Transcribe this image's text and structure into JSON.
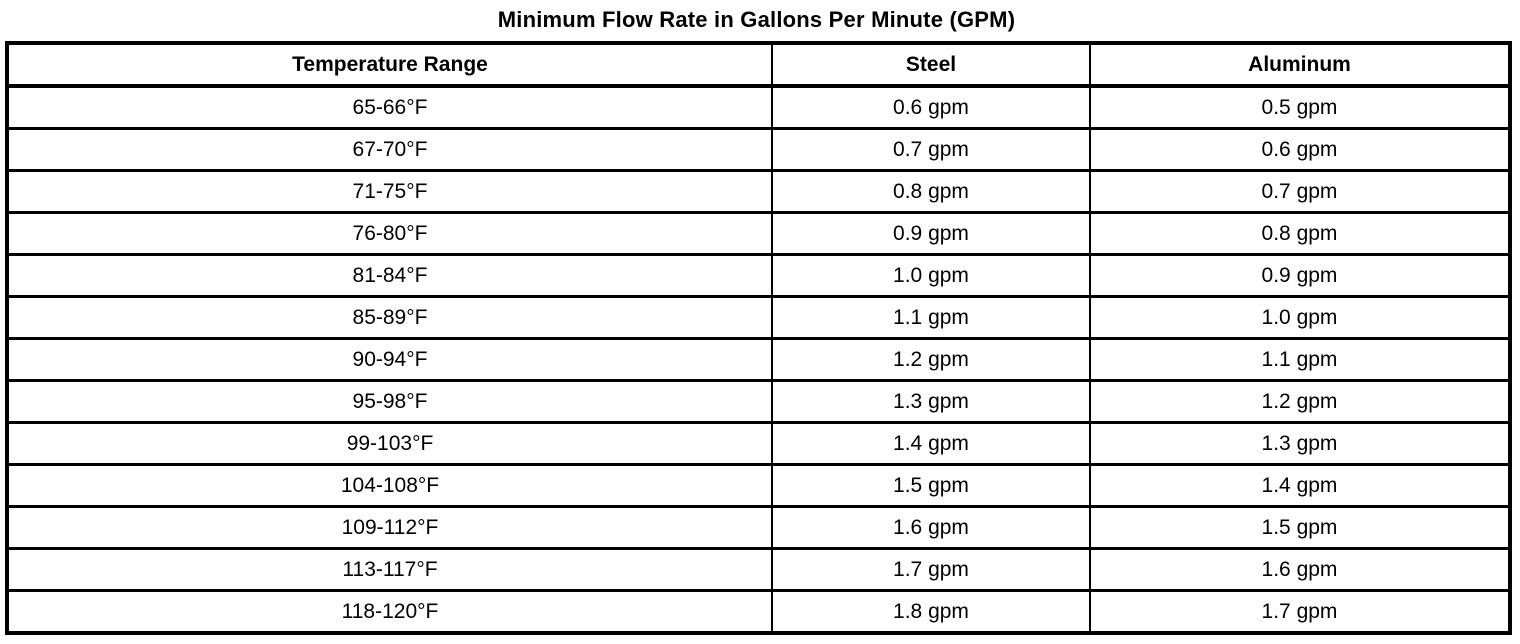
{
  "page": {
    "title": "Minimum Flow Rate in Gallons Per Minute (GPM)"
  },
  "colors": {
    "background": "#ffffff",
    "text": "#000000",
    "border": "#000000"
  },
  "table": {
    "columns": [
      "Temperature Range",
      "Steel",
      "Aluminum"
    ],
    "rows": [
      {
        "temperature": "65-66°F",
        "steel": "0.6 gpm",
        "aluminum": "0.5 gpm"
      },
      {
        "temperature": "67-70°F",
        "steel": "0.7 gpm",
        "aluminum": "0.6 gpm"
      },
      {
        "temperature": "71-75°F",
        "steel": "0.8 gpm",
        "aluminum": "0.7 gpm"
      },
      {
        "temperature": "76-80°F",
        "steel": "0.9 gpm",
        "aluminum": "0.8 gpm"
      },
      {
        "temperature": "81-84°F",
        "steel": "1.0 gpm",
        "aluminum": "0.9 gpm"
      },
      {
        "temperature": "85-89°F",
        "steel": "1.1 gpm",
        "aluminum": "1.0 gpm"
      },
      {
        "temperature": "90-94°F",
        "steel": "1.2 gpm",
        "aluminum": "1.1 gpm"
      },
      {
        "temperature": "95-98°F",
        "steel": "1.3 gpm",
        "aluminum": "1.2 gpm"
      },
      {
        "temperature": "99-103°F",
        "steel": "1.4 gpm",
        "aluminum": "1.3 gpm"
      },
      {
        "temperature": "104-108°F",
        "steel": "1.5 gpm",
        "aluminum": "1.4 gpm"
      },
      {
        "temperature": "109-112°F",
        "steel": "1.6 gpm",
        "aluminum": "1.5 gpm"
      },
      {
        "temperature": "113-117°F",
        "steel": "1.7 gpm",
        "aluminum": "1.6 gpm"
      },
      {
        "temperature": "118-120°F",
        "steel": "1.8 gpm",
        "aluminum": "1.7 gpm"
      }
    ]
  }
}
